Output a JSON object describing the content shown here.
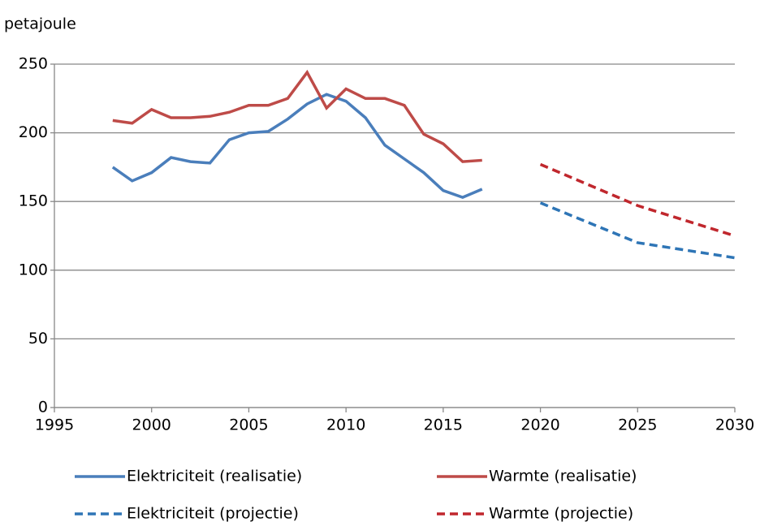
{
  "chart_data": {
    "type": "line",
    "y_label": "petajoule",
    "xlim": [
      1995,
      2030
    ],
    "xticks": [
      1995,
      2000,
      2005,
      2010,
      2015,
      2020,
      2025,
      2030
    ],
    "ylim": [
      0,
      250
    ],
    "yticks": [
      0,
      50,
      100,
      150,
      200,
      250
    ],
    "grid": true,
    "legend": "bottom",
    "series": [
      {
        "name": "Elektriciteit (realisatie)",
        "color": "#4a7ebb",
        "dashed": false,
        "x": [
          1998,
          1999,
          2000,
          2001,
          2002,
          2003,
          2004,
          2005,
          2006,
          2007,
          2008,
          2009,
          2010,
          2011,
          2012,
          2013,
          2014,
          2015,
          2016,
          2017
        ],
        "values": [
          175,
          165,
          171,
          182,
          179,
          178,
          195,
          200,
          201,
          210,
          221,
          228,
          223,
          211,
          191,
          181,
          171,
          158,
          153,
          159
        ]
      },
      {
        "name": "Warmte (realisatie)",
        "color": "#be4b48",
        "dashed": false,
        "x": [
          1998,
          1999,
          2000,
          2001,
          2002,
          2003,
          2004,
          2005,
          2006,
          2007,
          2008,
          2009,
          2010,
          2011,
          2012,
          2013,
          2014,
          2015,
          2016,
          2017
        ],
        "values": [
          209,
          207,
          217,
          211,
          211,
          212,
          215,
          220,
          220,
          225,
          244,
          218,
          232,
          225,
          225,
          220,
          199,
          192,
          179,
          180
        ]
      },
      {
        "name": "Elektriciteit (projectie)",
        "color": "#2e75b6",
        "dashed": true,
        "x": [
          2020,
          2025,
          2030
        ],
        "values": [
          149,
          120,
          109
        ]
      },
      {
        "name": "Warmte (projectie)",
        "color": "#c0272d",
        "dashed": true,
        "x": [
          2020,
          2025,
          2030
        ],
        "values": [
          177,
          147,
          125
        ]
      }
    ]
  }
}
